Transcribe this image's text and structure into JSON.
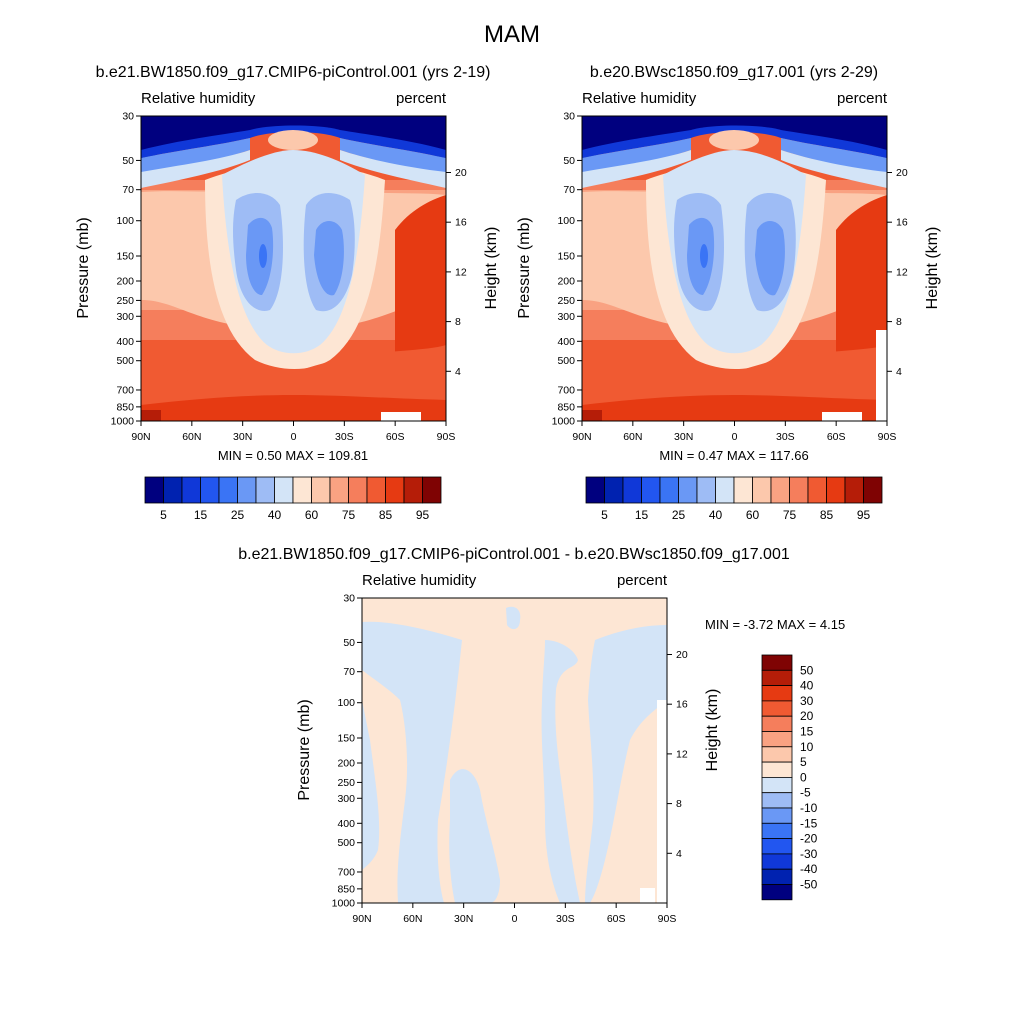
{
  "figure": {
    "title": "MAM"
  },
  "colors": {
    "rh_scale": [
      "#00007f",
      "#0022b0",
      "#1038d8",
      "#2256f0",
      "#3a74f5",
      "#6a98f5",
      "#9ebcf5",
      "#d3e4f7",
      "#fde6d4",
      "#fcc8ac",
      "#f9a282",
      "#f57e5c",
      "#f05a32",
      "#e63a12",
      "#b51d08",
      "#7f0303"
    ],
    "diff_scale": [
      "#00007f",
      "#0022b0",
      "#1038d8",
      "#2256f0",
      "#3a74f5",
      "#6a98f5",
      "#9ebcf5",
      "#d3e4f7",
      "#fde6d4",
      "#fcc8ac",
      "#f9a282",
      "#f57e5c",
      "#f05a32",
      "#e63a12",
      "#b51d08",
      "#7f0303"
    ]
  },
  "chart_data": [
    {
      "type": "heatmap",
      "title": "b.e21.BW1850.f09_g17.CMIP6-piControl.001 (yrs 2-19)",
      "left_label": "Relative humidity",
      "right_label": "percent",
      "xlabel": "",
      "ylabel": "Pressure (mb)",
      "ylabel_right": "Height (km)",
      "x_ticks": [
        "90N",
        "60N",
        "30N",
        "0",
        "30S",
        "60S",
        "90S"
      ],
      "y_ticks": [
        30,
        50,
        70,
        100,
        150,
        200,
        250,
        300,
        400,
        500,
        700,
        850,
        1000
      ],
      "height_ticks": [
        20,
        16,
        12,
        8,
        4
      ],
      "y_scale": "log",
      "ylim": [
        1000,
        30
      ],
      "min_label": "MIN =   0.50  MAX = 109.81",
      "colorbar_labels": [
        "5",
        "15",
        "25",
        "40",
        "60",
        "75",
        "85",
        "95"
      ],
      "colorbar_orientation": "horizontal"
    },
    {
      "type": "heatmap",
      "title": "b.e20.BWsc1850.f09_g17.001 (yrs 2-29)",
      "left_label": "Relative humidity",
      "right_label": "percent",
      "xlabel": "",
      "ylabel": "Pressure (mb)",
      "ylabel_right": "Height (km)",
      "x_ticks": [
        "90N",
        "60N",
        "30N",
        "0",
        "30S",
        "60S",
        "90S"
      ],
      "y_ticks": [
        30,
        50,
        70,
        100,
        150,
        200,
        250,
        300,
        400,
        500,
        700,
        850,
        1000
      ],
      "height_ticks": [
        20,
        16,
        12,
        8,
        4
      ],
      "y_scale": "log",
      "ylim": [
        1000,
        30
      ],
      "min_label": "MIN =   0.47  MAX = 117.66",
      "colorbar_labels": [
        "5",
        "15",
        "25",
        "40",
        "60",
        "75",
        "85",
        "95"
      ],
      "colorbar_orientation": "horizontal"
    },
    {
      "type": "heatmap",
      "title": "b.e21.BW1850.f09_g17.CMIP6-piControl.001 - b.e20.BWsc1850.f09_g17.001",
      "left_label": "Relative humidity",
      "right_label": "percent",
      "xlabel": "",
      "ylabel": "Pressure (mb)",
      "ylabel_right": "Height (km)",
      "x_ticks": [
        "90N",
        "60N",
        "30N",
        "0",
        "30S",
        "60S",
        "90S"
      ],
      "y_ticks": [
        30,
        50,
        70,
        100,
        150,
        200,
        250,
        300,
        400,
        500,
        700,
        850,
        1000
      ],
      "height_ticks": [
        20,
        16,
        12,
        8,
        4
      ],
      "y_scale": "log",
      "ylim": [
        1000,
        30
      ],
      "min_label": "MIN =  -3.72  MAX =   4.15",
      "colorbar_labels": [
        "50",
        "40",
        "30",
        "20",
        "15",
        "10",
        "5",
        "0",
        "-5",
        "-10",
        "-15",
        "-20",
        "-30",
        "-40",
        "-50"
      ],
      "colorbar_orientation": "vertical"
    }
  ]
}
